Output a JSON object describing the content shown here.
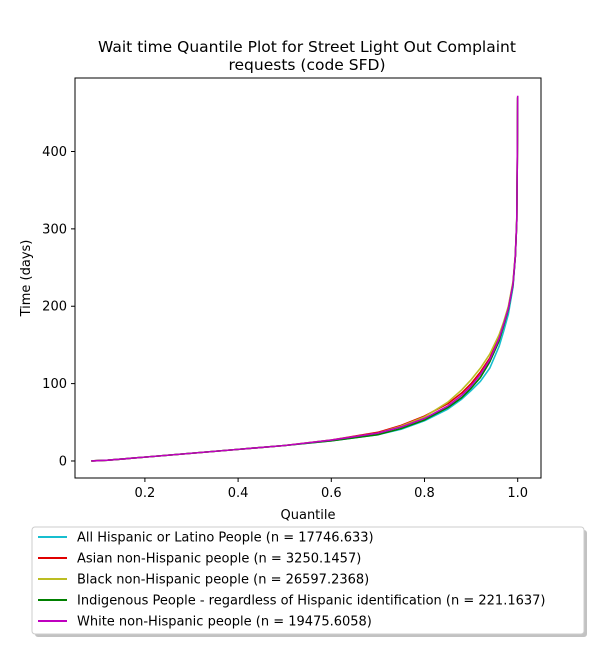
{
  "chart_data": {
    "type": "line",
    "title_lines": [
      "Wait time Quantile Plot for Street Light Out Complaint",
      "requests (code SFD)"
    ],
    "xlabel": "Quantile",
    "ylabel": "Time (days)",
    "xlim": [
      0.05,
      1.05
    ],
    "ylim": [
      -22,
      495
    ],
    "xticks": [
      0.2,
      0.4,
      0.6,
      0.8,
      1.0
    ],
    "xtick_labels": [
      "0.2",
      "0.4",
      "0.6",
      "0.8",
      "1.0"
    ],
    "yticks": [
      0,
      100,
      200,
      300,
      400
    ],
    "ytick_labels": [
      "0",
      "100",
      "200",
      "300",
      "400"
    ],
    "legend_position": "bottom",
    "series": [
      {
        "name": "All Hispanic or Latino People (n = 17746.633)",
        "color": "#17becf",
        "x": [
          0.085,
          0.12,
          0.2,
          0.3,
          0.4,
          0.5,
          0.6,
          0.7,
          0.75,
          0.8,
          0.85,
          0.88,
          0.9,
          0.92,
          0.94,
          0.96,
          0.97,
          0.98,
          0.99,
          0.995,
          0.998,
          0.999,
          1.0
        ],
        "y": [
          0,
          1,
          5,
          10,
          15,
          20,
          26,
          34,
          41,
          52,
          67,
          80,
          91,
          103,
          120,
          148,
          168,
          190,
          225,
          265,
          310,
          380,
          470
        ]
      },
      {
        "name": "Asian non-Hispanic people (n = 3250.1457)",
        "color": "#e00000",
        "x": [
          0.085,
          0.12,
          0.2,
          0.3,
          0.4,
          0.5,
          0.6,
          0.7,
          0.75,
          0.8,
          0.85,
          0.88,
          0.9,
          0.92,
          0.94,
          0.96,
          0.97,
          0.98,
          0.99,
          0.995,
          0.998,
          0.999,
          1.0
        ],
        "y": [
          0,
          1,
          5,
          10,
          15,
          20,
          27,
          37,
          46,
          58,
          74,
          88,
          100,
          115,
          133,
          160,
          178,
          198,
          230,
          265,
          310,
          380,
          470
        ]
      },
      {
        "name": "Black non-Hispanic people (n = 26597.2368)",
        "color": "#bcbd22",
        "x": [
          0.085,
          0.12,
          0.2,
          0.3,
          0.4,
          0.5,
          0.6,
          0.7,
          0.75,
          0.8,
          0.85,
          0.88,
          0.9,
          0.92,
          0.94,
          0.96,
          0.97,
          0.98,
          0.99,
          0.995,
          0.998,
          0.999,
          1.0
        ],
        "y": [
          0,
          1,
          5,
          10,
          15,
          20,
          27,
          36,
          45,
          57,
          76,
          92,
          105,
          120,
          138,
          163,
          180,
          200,
          232,
          268,
          312,
          380,
          470
        ]
      },
      {
        "name": "Indigenous People - regardless of Hispanic identification (n = 221.1637)",
        "color": "#008000",
        "x": [
          0.085,
          0.12,
          0.2,
          0.3,
          0.4,
          0.5,
          0.6,
          0.7,
          0.75,
          0.8,
          0.85,
          0.88,
          0.9,
          0.92,
          0.94,
          0.96,
          0.97,
          0.98,
          0.99,
          0.995,
          0.998,
          0.999,
          1.0
        ],
        "y": [
          0,
          1,
          5,
          10,
          15,
          20,
          26,
          34,
          42,
          53,
          69,
          82,
          94,
          108,
          128,
          155,
          175,
          196,
          228,
          265,
          310,
          380,
          470
        ]
      },
      {
        "name": "White non-Hispanic people (n = 19475.6058)",
        "color": "#bf00bf",
        "x": [
          0.085,
          0.12,
          0.2,
          0.3,
          0.4,
          0.5,
          0.6,
          0.7,
          0.75,
          0.8,
          0.85,
          0.88,
          0.9,
          0.92,
          0.94,
          0.96,
          0.97,
          0.98,
          0.99,
          0.995,
          0.998,
          0.999,
          1.0
        ],
        "y": [
          0,
          1,
          5,
          10,
          15,
          20,
          27,
          36,
          44,
          55,
          71,
          85,
          97,
          112,
          131,
          158,
          177,
          197,
          229,
          266,
          311,
          380,
          472
        ]
      }
    ]
  }
}
